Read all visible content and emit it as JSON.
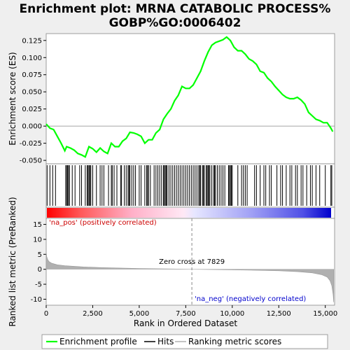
{
  "title_line1": "Enrichment plot: MRNA CATABOLIC PROCESS%",
  "title_line2": "GOBP%GO:0006402",
  "colors": {
    "background": "#efefef",
    "panel": "#ffffff",
    "enrichment_line": "#00ff00",
    "hits": "#000000",
    "metric_fill": "#b0b0b0",
    "pos_label": "#cc0000",
    "neg_label": "#0000cc",
    "zero_line": "#888888"
  },
  "chart_data": [
    {
      "type": "line",
      "name": "enrichment-profile",
      "ylabel": "Enrichment score (ES)",
      "ylim": [
        -0.055,
        0.135
      ],
      "xlim": [
        0,
        15500
      ],
      "yticks": [
        -0.05,
        -0.025,
        0.0,
        0.025,
        0.05,
        0.075,
        0.1,
        0.125
      ],
      "ytick_labels": [
        "-0.050",
        "-0.025",
        "0.000",
        "0.025",
        "0.050",
        "0.075",
        "0.100",
        "0.125"
      ],
      "x": [
        0,
        200,
        400,
        600,
        800,
        1000,
        1100,
        1300,
        1500,
        1700,
        1900,
        2100,
        2300,
        2500,
        2700,
        2900,
        3100,
        3300,
        3500,
        3700,
        3900,
        4100,
        4300,
        4500,
        4700,
        4900,
        5100,
        5300,
        5500,
        5700,
        5900,
        6100,
        6300,
        6500,
        6700,
        6900,
        7100,
        7300,
        7500,
        7700,
        7900,
        8100,
        8300,
        8500,
        8700,
        8900,
        9100,
        9300,
        9500,
        9700,
        9900,
        10100,
        10300,
        10500,
        10700,
        10900,
        11100,
        11300,
        11500,
        11700,
        11900,
        12100,
        12300,
        12500,
        12700,
        12900,
        13100,
        13300,
        13500,
        13700,
        13900,
        14100,
        14300,
        14500,
        14700,
        14900,
        15100,
        15300,
        15400
      ],
      "y": [
        0.003,
        -0.003,
        -0.005,
        -0.015,
        -0.025,
        -0.036,
        -0.03,
        -0.032,
        -0.035,
        -0.04,
        -0.042,
        -0.045,
        -0.03,
        -0.033,
        -0.038,
        -0.032,
        -0.037,
        -0.04,
        -0.025,
        -0.03,
        -0.03,
        -0.022,
        -0.018,
        -0.009,
        -0.01,
        -0.012,
        -0.015,
        -0.025,
        -0.02,
        -0.02,
        -0.01,
        -0.005,
        0.01,
        0.018,
        0.025,
        0.037,
        0.045,
        0.058,
        0.055,
        0.055,
        0.06,
        0.07,
        0.08,
        0.095,
        0.108,
        0.118,
        0.122,
        0.124,
        0.126,
        0.13,
        0.125,
        0.115,
        0.11,
        0.11,
        0.105,
        0.098,
        0.095,
        0.09,
        0.08,
        0.078,
        0.07,
        0.065,
        0.058,
        0.052,
        0.046,
        0.042,
        0.04,
        0.04,
        0.042,
        0.038,
        0.032,
        0.02,
        0.015,
        0.01,
        0.008,
        0.005,
        0.005,
        -0.003,
        -0.008
      ]
    },
    {
      "type": "hits",
      "name": "hits",
      "xlim": [
        0,
        15500
      ],
      "x": [
        50,
        200,
        350,
        500,
        1050,
        1100,
        1150,
        1200,
        1250,
        1400,
        1550,
        1800,
        1900,
        2100,
        2200,
        2250,
        2300,
        2350,
        2400,
        2500,
        2700,
        2900,
        3000,
        3100,
        3350,
        3500,
        3550,
        3650,
        3800,
        4000,
        4050,
        4200,
        4300,
        4400,
        4450,
        4500,
        4600,
        4700,
        4800,
        5000,
        5100,
        5300,
        5400,
        5450,
        5500,
        5600,
        5800,
        5900,
        6000,
        6100,
        6200,
        6300,
        6350,
        6400,
        6450,
        6500,
        6600,
        6700,
        6800,
        6900,
        7000,
        7100,
        7200,
        7300,
        7400,
        7500,
        7600,
        7700,
        7800,
        7900,
        8000,
        8100,
        8200,
        8250,
        8300,
        8400,
        8450,
        8500,
        8600,
        8650,
        8700,
        8750,
        8800,
        8900,
        9000,
        9050,
        9100,
        9200,
        9300,
        9400,
        9500,
        9600,
        9800,
        9850,
        9900,
        9950,
        10000,
        10300,
        10500,
        10600,
        10700,
        10800,
        11200,
        11300,
        11500,
        11700,
        11800,
        12000,
        12100,
        12400,
        12600,
        12700,
        12900,
        13100,
        13200,
        13400,
        13500,
        13700,
        13800,
        14000,
        14200,
        14300,
        14500,
        14700,
        15000,
        15300,
        15350
      ]
    },
    {
      "type": "area",
      "name": "ranking-metric-scores",
      "ylabel": "Ranked list metric (PreRanked)",
      "xlabel": "Rank in Ordered Dataset",
      "ylim": [
        -12,
        17
      ],
      "xlim": [
        0,
        15500
      ],
      "yticks": [
        -10,
        -5,
        0,
        5,
        10,
        15
      ],
      "ytick_labels": [
        "-10",
        "-5",
        "0",
        "5",
        "10",
        "15"
      ],
      "xticks": [
        0,
        2500,
        5000,
        7500,
        10000,
        12500,
        15000
      ],
      "xtick_labels": [
        "0",
        "2,500",
        "5,000",
        "7,500",
        "10,000",
        "12,500",
        "15,000"
      ],
      "x": [
        0,
        30,
        80,
        150,
        300,
        600,
        1000,
        2000,
        3000,
        5000,
        7000,
        7829,
        9000,
        11000,
        12500,
        13500,
        14300,
        14800,
        15100,
        15250,
        15350,
        15420,
        15450
      ],
      "y": [
        5.8,
        4.2,
        3.3,
        2.6,
        2.0,
        1.5,
        1.2,
        0.8,
        0.55,
        0.25,
        0.08,
        0.0,
        -0.1,
        -0.3,
        -0.5,
        -0.8,
        -1.2,
        -1.8,
        -2.6,
        -3.8,
        -5.5,
        -8.5,
        -11.0
      ],
      "zero_cross_label": "Zero cross at 7829",
      "zero_cross_x": 7829,
      "pos_label": "'na_pos' (positively correlated)",
      "neg_label": "'na_neg' (negatively correlated)"
    }
  ],
  "legend": {
    "items": [
      {
        "label": "Enrichment profile",
        "color": "#00ff00"
      },
      {
        "label": "Hits",
        "color": "#000000"
      },
      {
        "label": "Ranking metric scores",
        "color": "#b0b0b0"
      }
    ]
  }
}
